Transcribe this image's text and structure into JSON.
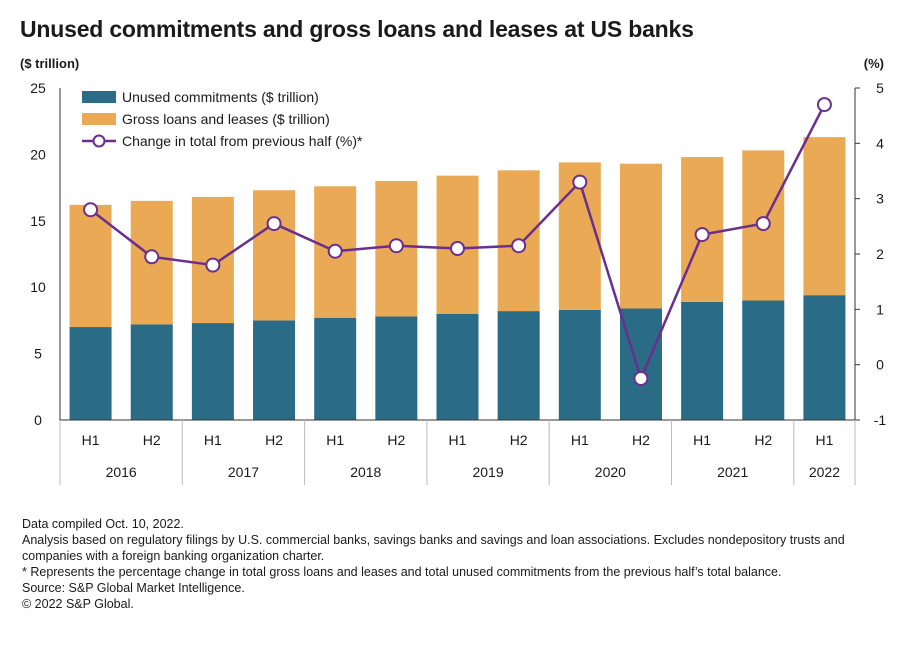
{
  "title": "Unused commitments and gross loans and leases at US banks",
  "left_axis_unit": "($ trillion)",
  "right_axis_unit": "(%)",
  "colors": {
    "unused": "#2a6b86",
    "loans": "#eaa955",
    "change_line": "#6a2e8e",
    "axis": "#333333"
  },
  "chart_data": {
    "type": "bar",
    "stacked": true,
    "categories": [
      "H1",
      "H2",
      "H1",
      "H2",
      "H1",
      "H2",
      "H1",
      "H2",
      "H1",
      "H2",
      "H1",
      "H2",
      "H1"
    ],
    "year_groups": [
      {
        "label": "2016",
        "count": 2
      },
      {
        "label": "2017",
        "count": 2
      },
      {
        "label": "2018",
        "count": 2
      },
      {
        "label": "2019",
        "count": 2
      },
      {
        "label": "2020",
        "count": 2
      },
      {
        "label": "2021",
        "count": 2
      },
      {
        "label": "2022",
        "count": 1
      }
    ],
    "series": [
      {
        "name": "Unused commitments ($ trillion)",
        "kind": "bar",
        "values": [
          7.0,
          7.2,
          7.3,
          7.5,
          7.7,
          7.8,
          8.0,
          8.2,
          8.3,
          8.4,
          8.9,
          9.0,
          9.4
        ]
      },
      {
        "name": "Gross loans and leases ($ trillion)",
        "kind": "bar",
        "values": [
          9.2,
          9.3,
          9.5,
          9.8,
          9.9,
          10.2,
          10.4,
          10.6,
          11.1,
          10.9,
          10.9,
          11.3,
          11.9
        ]
      },
      {
        "name": "Change in total from previous half (%)*",
        "kind": "line",
        "axis": "right",
        "values": [
          2.8,
          1.95,
          1.8,
          2.55,
          2.05,
          2.15,
          2.1,
          2.15,
          3.3,
          -0.25,
          2.35,
          2.55,
          4.7
        ]
      }
    ],
    "ylim": [
      0,
      25
    ],
    "yticks": [
      0,
      5,
      10,
      15,
      20,
      25
    ],
    "y2lim": [
      -1,
      5
    ],
    "y2ticks": [
      -1,
      0,
      1,
      2,
      3,
      4,
      5
    ],
    "legend_position": "top-left"
  },
  "notes": [
    "Data compiled Oct. 10, 2022.",
    "Analysis based on regulatory filings by U.S. commercial banks, savings banks and savings and loan associations. Excludes nondepository trusts and companies with a foreign banking organization charter.",
    "* Represents the percentage change in total gross loans and leases and total unused commitments from the previous half’s total balance.",
    "Source: S&P Global Market Intelligence.",
    "© 2022 S&P Global."
  ]
}
